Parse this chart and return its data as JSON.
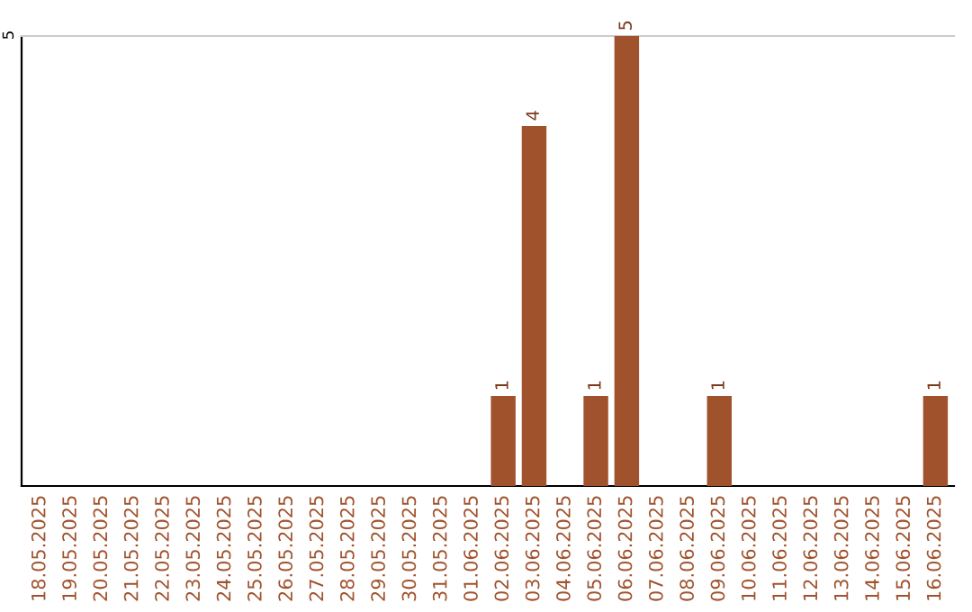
{
  "chart_data": {
    "type": "bar",
    "categories": [
      "18.05.2025",
      "19.05.2025",
      "20.05.2025",
      "21.05.2025",
      "22.05.2025",
      "23.05.2025",
      "24.05.2025",
      "25.05.2025",
      "26.05.2025",
      "27.05.2025",
      "28.05.2025",
      "29.05.2025",
      "30.05.2025",
      "31.05.2025",
      "01.06.2025",
      "02.06.2025",
      "03.06.2025",
      "04.06.2025",
      "05.06.2025",
      "06.06.2025",
      "07.06.2025",
      "08.06.2025",
      "09.06.2025",
      "10.06.2025",
      "11.06.2025",
      "12.06.2025",
      "13.06.2025",
      "14.06.2025",
      "15.06.2025",
      "16.06.2025"
    ],
    "values": [
      null,
      null,
      null,
      null,
      null,
      null,
      null,
      null,
      null,
      null,
      null,
      null,
      null,
      null,
      null,
      1,
      4,
      null,
      1,
      5,
      null,
      null,
      1,
      null,
      null,
      null,
      null,
      null,
      null,
      1
    ],
    "value_labels": [
      null,
      null,
      null,
      null,
      null,
      null,
      null,
      null,
      null,
      null,
      null,
      null,
      null,
      null,
      null,
      "1",
      "4",
      null,
      "1",
      "5",
      null,
      null,
      "1",
      null,
      null,
      null,
      null,
      null,
      null,
      "1"
    ],
    "color": "#a0522d",
    "ylim": [
      0,
      5
    ],
    "yticks": [
      5
    ]
  }
}
